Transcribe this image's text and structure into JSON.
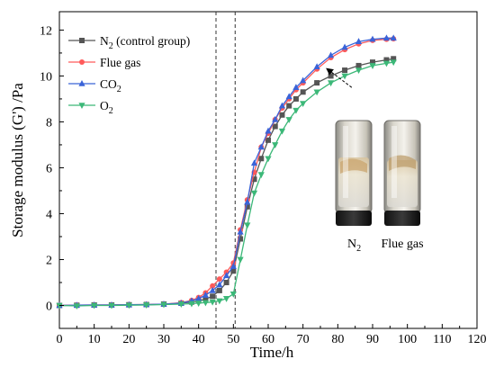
{
  "chart_data": {
    "type": "line",
    "xlabel": "Time/h",
    "ylabel": "Storage modulus (G') /Pa",
    "xlim": [
      0,
      120
    ],
    "ylim": [
      -1,
      12.8
    ],
    "xticks": [
      0,
      10,
      20,
      30,
      40,
      50,
      60,
      70,
      80,
      90,
      100,
      110,
      120
    ],
    "yticks": [
      0,
      2,
      4,
      6,
      8,
      10,
      12
    ],
    "grid": false,
    "legend_position": "top-left",
    "vlines": [
      45,
      50.5
    ],
    "series": [
      {
        "name": "N2 (control group)",
        "name_main": "N",
        "name_sub": "2",
        "name_rest": " (control group)",
        "color": "#555555",
        "marker": "square",
        "x": [
          0,
          5,
          10,
          15,
          20,
          25,
          30,
          35,
          38,
          40,
          42,
          44,
          46,
          48,
          50,
          52,
          54,
          56,
          58,
          60,
          62,
          64,
          66,
          68,
          70,
          74,
          78,
          82,
          86,
          90,
          94,
          96
        ],
        "y": [
          0,
          0.01,
          0.02,
          0.02,
          0.03,
          0.04,
          0.06,
          0.1,
          0.15,
          0.2,
          0.28,
          0.4,
          0.65,
          1.0,
          1.5,
          2.9,
          4.3,
          5.5,
          6.4,
          7.2,
          7.8,
          8.3,
          8.7,
          9.0,
          9.3,
          9.7,
          10.0,
          10.25,
          10.45,
          10.6,
          10.7,
          10.75
        ]
      },
      {
        "name": "Flue gas",
        "name_main": "Flue gas",
        "name_sub": "",
        "name_rest": "",
        "color": "#ff5a5a",
        "marker": "circle",
        "x": [
          0,
          5,
          10,
          15,
          20,
          25,
          30,
          35,
          38,
          40,
          42,
          44,
          46,
          48,
          50,
          52,
          54,
          56,
          58,
          60,
          62,
          64,
          66,
          68,
          70,
          74,
          78,
          82,
          86,
          90,
          94,
          96
        ],
        "y": [
          0,
          0.01,
          0.02,
          0.02,
          0.03,
          0.04,
          0.06,
          0.12,
          0.22,
          0.35,
          0.55,
          0.85,
          1.15,
          1.45,
          1.85,
          3.3,
          4.6,
          5.8,
          6.9,
          7.5,
          8.1,
          8.6,
          9.0,
          9.4,
          9.7,
          10.3,
          10.8,
          11.15,
          11.4,
          11.55,
          11.6,
          11.62
        ]
      },
      {
        "name": "CO2",
        "name_main": "CO",
        "name_sub": "2",
        "name_rest": "",
        "color": "#3a63d8",
        "marker": "triangle-up",
        "x": [
          0,
          5,
          10,
          15,
          20,
          25,
          30,
          35,
          38,
          40,
          42,
          44,
          46,
          48,
          50,
          52,
          54,
          56,
          58,
          60,
          62,
          64,
          66,
          68,
          70,
          74,
          78,
          82,
          86,
          90,
          94,
          96
        ],
        "y": [
          0,
          0.01,
          0.02,
          0.02,
          0.03,
          0.04,
          0.06,
          0.1,
          0.2,
          0.3,
          0.45,
          0.65,
          0.9,
          1.3,
          1.7,
          3.2,
          4.5,
          6.2,
          6.9,
          7.6,
          8.1,
          8.7,
          9.1,
          9.5,
          9.8,
          10.4,
          10.9,
          11.25,
          11.5,
          11.6,
          11.65,
          11.65
        ]
      },
      {
        "name": "O2",
        "name_main": "O",
        "name_sub": "2",
        "name_rest": "",
        "color": "#3cb878",
        "marker": "triangle-down",
        "x": [
          0,
          5,
          10,
          15,
          20,
          25,
          30,
          35,
          38,
          40,
          42,
          44,
          46,
          48,
          50,
          52,
          54,
          56,
          58,
          60,
          62,
          64,
          66,
          68,
          70,
          74,
          78,
          82,
          86,
          90,
          94,
          96
        ],
        "y": [
          0,
          -0.02,
          0.0,
          0.0,
          0.01,
          0.02,
          0.04,
          0.06,
          0.08,
          0.1,
          0.12,
          0.15,
          0.2,
          0.3,
          0.5,
          2.0,
          3.5,
          4.9,
          5.7,
          6.4,
          7.0,
          7.6,
          8.1,
          8.5,
          8.8,
          9.3,
          9.7,
          10.0,
          10.25,
          10.45,
          10.55,
          10.6
        ]
      }
    ],
    "annotation_arrow": {
      "from": [
        84,
        9.5
      ],
      "to": [
        77,
        10.3
      ]
    }
  },
  "inset": {
    "left_caption_main": "N",
    "left_caption_sub": "2",
    "right_caption": "Flue gas"
  }
}
